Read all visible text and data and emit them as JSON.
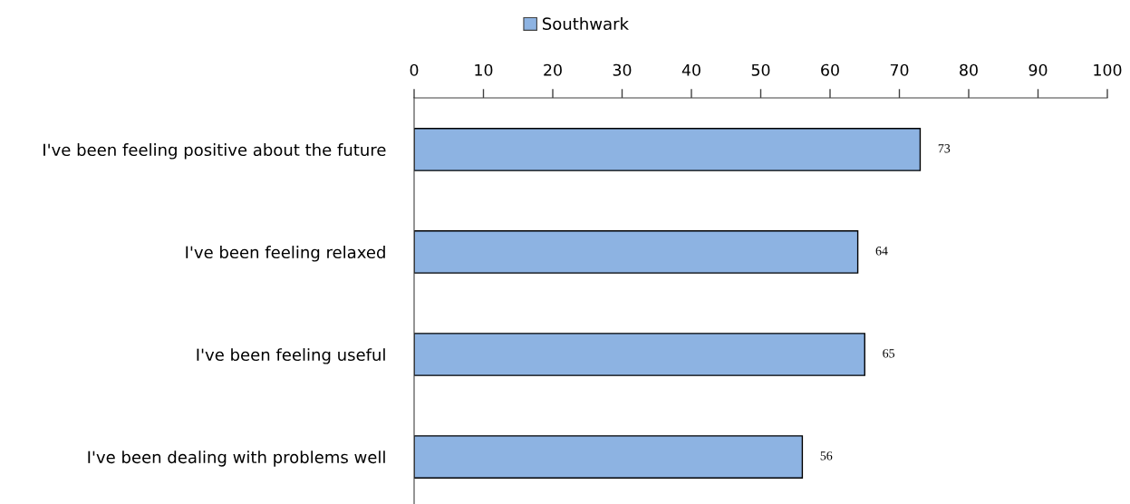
{
  "chart_data": {
    "type": "bar",
    "orientation": "horizontal",
    "categories": [
      "I've been feeling positive about the future",
      "I've been feeling relaxed",
      "I've been feeling useful",
      "I've been dealing with problems well"
    ],
    "series": [
      {
        "name": "Southwark",
        "color": "#8db3e2",
        "values": [
          73,
          64,
          65,
          56
        ]
      }
    ],
    "xlim": [
      0,
      100
    ],
    "xticks": [
      0,
      10,
      20,
      30,
      40,
      50,
      60,
      70,
      80,
      90,
      100
    ],
    "grid": false,
    "legend": "top",
    "data_labels": true
  }
}
